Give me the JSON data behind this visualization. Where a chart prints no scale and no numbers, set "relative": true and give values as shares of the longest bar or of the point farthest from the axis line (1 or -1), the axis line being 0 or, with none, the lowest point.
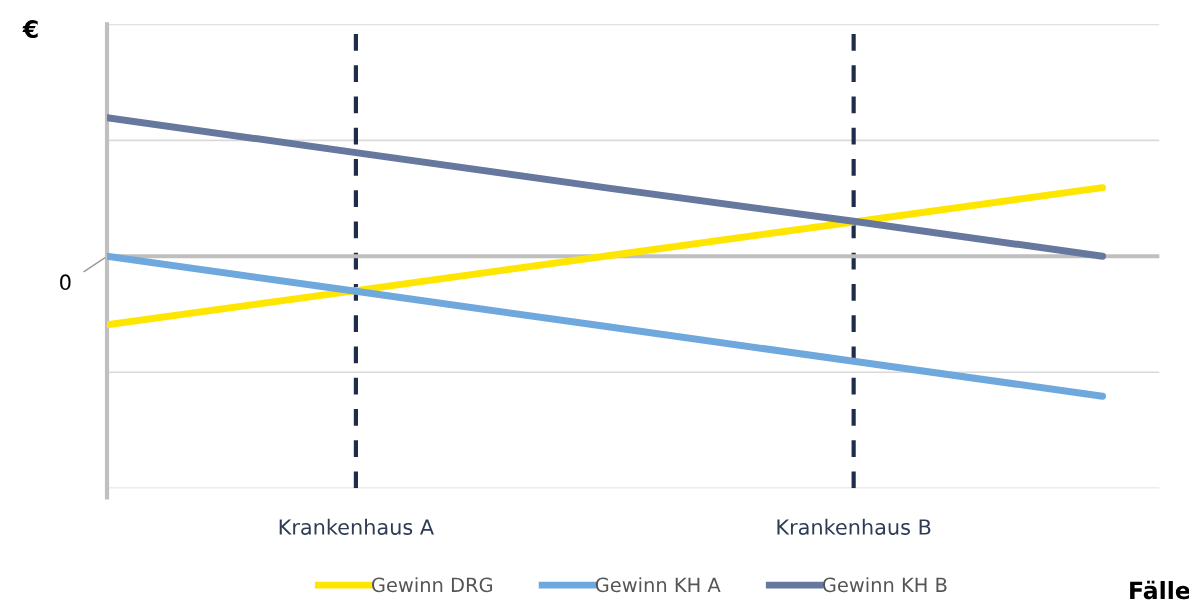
{
  "chart_data": {
    "type": "line",
    "relative": true,
    "xlabel": "Fälle",
    "ylabel": "€",
    "categories": [
      null,
      "Krankenhaus A",
      null,
      "Krankenhaus B",
      null
    ],
    "series": [
      {
        "name": "Gewinn DRG",
        "color": "#ffe600",
        "values": [
          -0.49,
          -0.245,
          0,
          0.245,
          0.49
        ]
      },
      {
        "name": "Gewinn KH A",
        "color": "#6fa8dc",
        "values": [
          0,
          -0.25,
          -0.5,
          -0.75,
          -1
        ]
      },
      {
        "name": "Gewinn KH B",
        "color": "#66789e",
        "values": [
          0.99,
          0.74,
          0.49,
          0.25,
          0
        ]
      }
    ],
    "ref_lines": [
      {
        "axis": "x",
        "value": "Krankenhaus A",
        "color": "#1f2d4a",
        "line_style": "dashed"
      },
      {
        "axis": "x",
        "value": "Krankenhaus B",
        "color": "#1f2d4a",
        "line_style": "dashed"
      }
    ],
    "annotations": [
      "0"
    ],
    "grid": "y",
    "legend": "bottom",
    "marker": "none",
    "line_style": "solid"
  }
}
